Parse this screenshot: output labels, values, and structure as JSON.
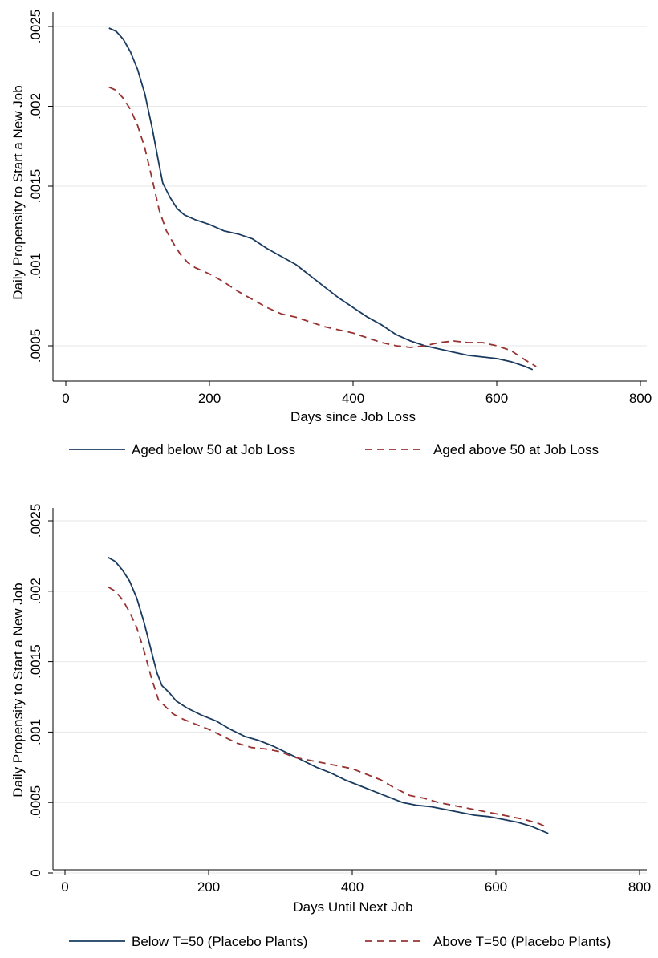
{
  "chart_data": [
    {
      "type": "line",
      "title": "",
      "xlabel": "Days since Job Loss",
      "ylabel": "Daily Propensity to Start a New Job",
      "xlim": [
        0,
        800
      ],
      "ylim": [
        0.0003,
        0.0025
      ],
      "x_ticks": [
        0,
        200,
        400,
        600,
        800
      ],
      "x_tick_labels": [
        "0",
        "200",
        "400",
        "600",
        "800"
      ],
      "y_ticks": [
        0.0005,
        0.001,
        0.0015,
        0.002,
        0.0025
      ],
      "y_tick_labels": [
        ".0005",
        ".001",
        ".0015",
        ".002",
        ".0025"
      ],
      "grid": true,
      "legend_position": "bottom",
      "series": [
        {
          "name": "Aged below 50 at Job Loss",
          "color": "#1a3b5f",
          "dash": "solid",
          "points": [
            [
              60,
              0.00249
            ],
            [
              70,
              0.00247
            ],
            [
              80,
              0.00242
            ],
            [
              90,
              0.00234
            ],
            [
              100,
              0.00223
            ],
            [
              110,
              0.00208
            ],
            [
              120,
              0.00187
            ],
            [
              130,
              0.00163
            ],
            [
              135,
              0.00152
            ],
            [
              145,
              0.00143
            ],
            [
              155,
              0.00136
            ],
            [
              165,
              0.00132
            ],
            [
              180,
              0.00129
            ],
            [
              200,
              0.00126
            ],
            [
              220,
              0.00122
            ],
            [
              240,
              0.0012
            ],
            [
              260,
              0.00117
            ],
            [
              280,
              0.00111
            ],
            [
              300,
              0.00106
            ],
            [
              320,
              0.00101
            ],
            [
              340,
              0.00094
            ],
            [
              360,
              0.00087
            ],
            [
              380,
              0.0008
            ],
            [
              400,
              0.00074
            ],
            [
              420,
              0.00068
            ],
            [
              440,
              0.00063
            ],
            [
              460,
              0.00057
            ],
            [
              480,
              0.00053
            ],
            [
              500,
              0.0005
            ],
            [
              520,
              0.00048
            ],
            [
              540,
              0.00046
            ],
            [
              560,
              0.00044
            ],
            [
              580,
              0.00043
            ],
            [
              600,
              0.00042
            ],
            [
              620,
              0.0004
            ],
            [
              640,
              0.00037
            ],
            [
              650,
              0.00035
            ]
          ]
        },
        {
          "name": "Aged above 50 at Job Loss",
          "color": "#993333",
          "dash": "dashed",
          "points": [
            [
              60,
              0.00212
            ],
            [
              70,
              0.0021
            ],
            [
              80,
              0.00205
            ],
            [
              90,
              0.00198
            ],
            [
              100,
              0.00188
            ],
            [
              110,
              0.00174
            ],
            [
              120,
              0.00155
            ],
            [
              130,
              0.00135
            ],
            [
              140,
              0.00122
            ],
            [
              150,
              0.00114
            ],
            [
              160,
              0.00107
            ],
            [
              170,
              0.00102
            ],
            [
              180,
              0.00099
            ],
            [
              190,
              0.00097
            ],
            [
              200,
              0.00095
            ],
            [
              220,
              0.0009
            ],
            [
              240,
              0.00084
            ],
            [
              260,
              0.00079
            ],
            [
              280,
              0.00074
            ],
            [
              300,
              0.0007
            ],
            [
              320,
              0.00068
            ],
            [
              340,
              0.00065
            ],
            [
              360,
              0.00062
            ],
            [
              380,
              0.0006
            ],
            [
              400,
              0.00058
            ],
            [
              420,
              0.00055
            ],
            [
              440,
              0.00052
            ],
            [
              460,
              0.0005
            ],
            [
              480,
              0.00049
            ],
            [
              500,
              0.0005
            ],
            [
              520,
              0.00052
            ],
            [
              540,
              0.00053
            ],
            [
              560,
              0.00052
            ],
            [
              580,
              0.00052
            ],
            [
              600,
              0.0005
            ],
            [
              620,
              0.00047
            ],
            [
              640,
              0.00041
            ],
            [
              655,
              0.00037
            ]
          ]
        }
      ]
    },
    {
      "type": "line",
      "title": "",
      "xlabel": "Days Until Next Job",
      "ylabel": "Daily Propensity to Start a New Job",
      "xlim": [
        0,
        800
      ],
      "ylim": [
        0,
        0.0025
      ],
      "x_ticks": [
        0,
        200,
        400,
        600,
        800
      ],
      "x_tick_labels": [
        "0",
        "200",
        "400",
        "600",
        "800"
      ],
      "y_ticks": [
        0,
        0.0005,
        0.001,
        0.0015,
        0.002,
        0.0025
      ],
      "y_tick_labels": [
        "0",
        ".0005",
        ".001",
        ".0015",
        ".002",
        ".0025"
      ],
      "grid": true,
      "legend_position": "bottom",
      "series": [
        {
          "name": "Below T=50 (Placebo Plants)",
          "color": "#1a3b5f",
          "dash": "solid",
          "points": [
            [
              60,
              0.00224
            ],
            [
              70,
              0.00221
            ],
            [
              80,
              0.00215
            ],
            [
              90,
              0.00207
            ],
            [
              100,
              0.00195
            ],
            [
              110,
              0.00178
            ],
            [
              120,
              0.00158
            ],
            [
              128,
              0.00142
            ],
            [
              135,
              0.00133
            ],
            [
              145,
              0.00128
            ],
            [
              155,
              0.00122
            ],
            [
              170,
              0.00117
            ],
            [
              190,
              0.00112
            ],
            [
              210,
              0.00108
            ],
            [
              230,
              0.00102
            ],
            [
              250,
              0.00097
            ],
            [
              270,
              0.00094
            ],
            [
              290,
              0.0009
            ],
            [
              310,
              0.00085
            ],
            [
              330,
              0.0008
            ],
            [
              350,
              0.00075
            ],
            [
              370,
              0.00071
            ],
            [
              390,
              0.00066
            ],
            [
              410,
              0.00062
            ],
            [
              430,
              0.00058
            ],
            [
              450,
              0.00054
            ],
            [
              470,
              0.0005
            ],
            [
              490,
              0.00048
            ],
            [
              510,
              0.00047
            ],
            [
              530,
              0.00045
            ],
            [
              550,
              0.00043
            ],
            [
              570,
              0.00041
            ],
            [
              590,
              0.0004
            ],
            [
              610,
              0.00038
            ],
            [
              630,
              0.00036
            ],
            [
              650,
              0.00033
            ],
            [
              673,
              0.00028
            ]
          ]
        },
        {
          "name": "Above T=50 (Placebo Plants)",
          "color": "#993333",
          "dash": "dashed",
          "points": [
            [
              60,
              0.00203
            ],
            [
              70,
              0.002
            ],
            [
              80,
              0.00194
            ],
            [
              90,
              0.00185
            ],
            [
              100,
              0.00174
            ],
            [
              110,
              0.00158
            ],
            [
              120,
              0.00139
            ],
            [
              130,
              0.00123
            ],
            [
              140,
              0.00118
            ],
            [
              150,
              0.00113
            ],
            [
              165,
              0.00109
            ],
            [
              180,
              0.00106
            ],
            [
              200,
              0.00102
            ],
            [
              220,
              0.00097
            ],
            [
              240,
              0.00092
            ],
            [
              260,
              0.00089
            ],
            [
              280,
              0.00088
            ],
            [
              300,
              0.00086
            ],
            [
              320,
              0.00082
            ],
            [
              340,
              0.0008
            ],
            [
              360,
              0.00078
            ],
            [
              380,
              0.00076
            ],
            [
              400,
              0.00074
            ],
            [
              420,
              0.0007
            ],
            [
              440,
              0.00066
            ],
            [
              460,
              0.0006
            ],
            [
              480,
              0.00055
            ],
            [
              500,
              0.00053
            ],
            [
              520,
              0.0005
            ],
            [
              540,
              0.00048
            ],
            [
              560,
              0.00046
            ],
            [
              580,
              0.00044
            ],
            [
              600,
              0.00042
            ],
            [
              620,
              0.0004
            ],
            [
              640,
              0.00038
            ],
            [
              660,
              0.00035
            ],
            [
              673,
              0.00032
            ]
          ]
        }
      ]
    }
  ]
}
